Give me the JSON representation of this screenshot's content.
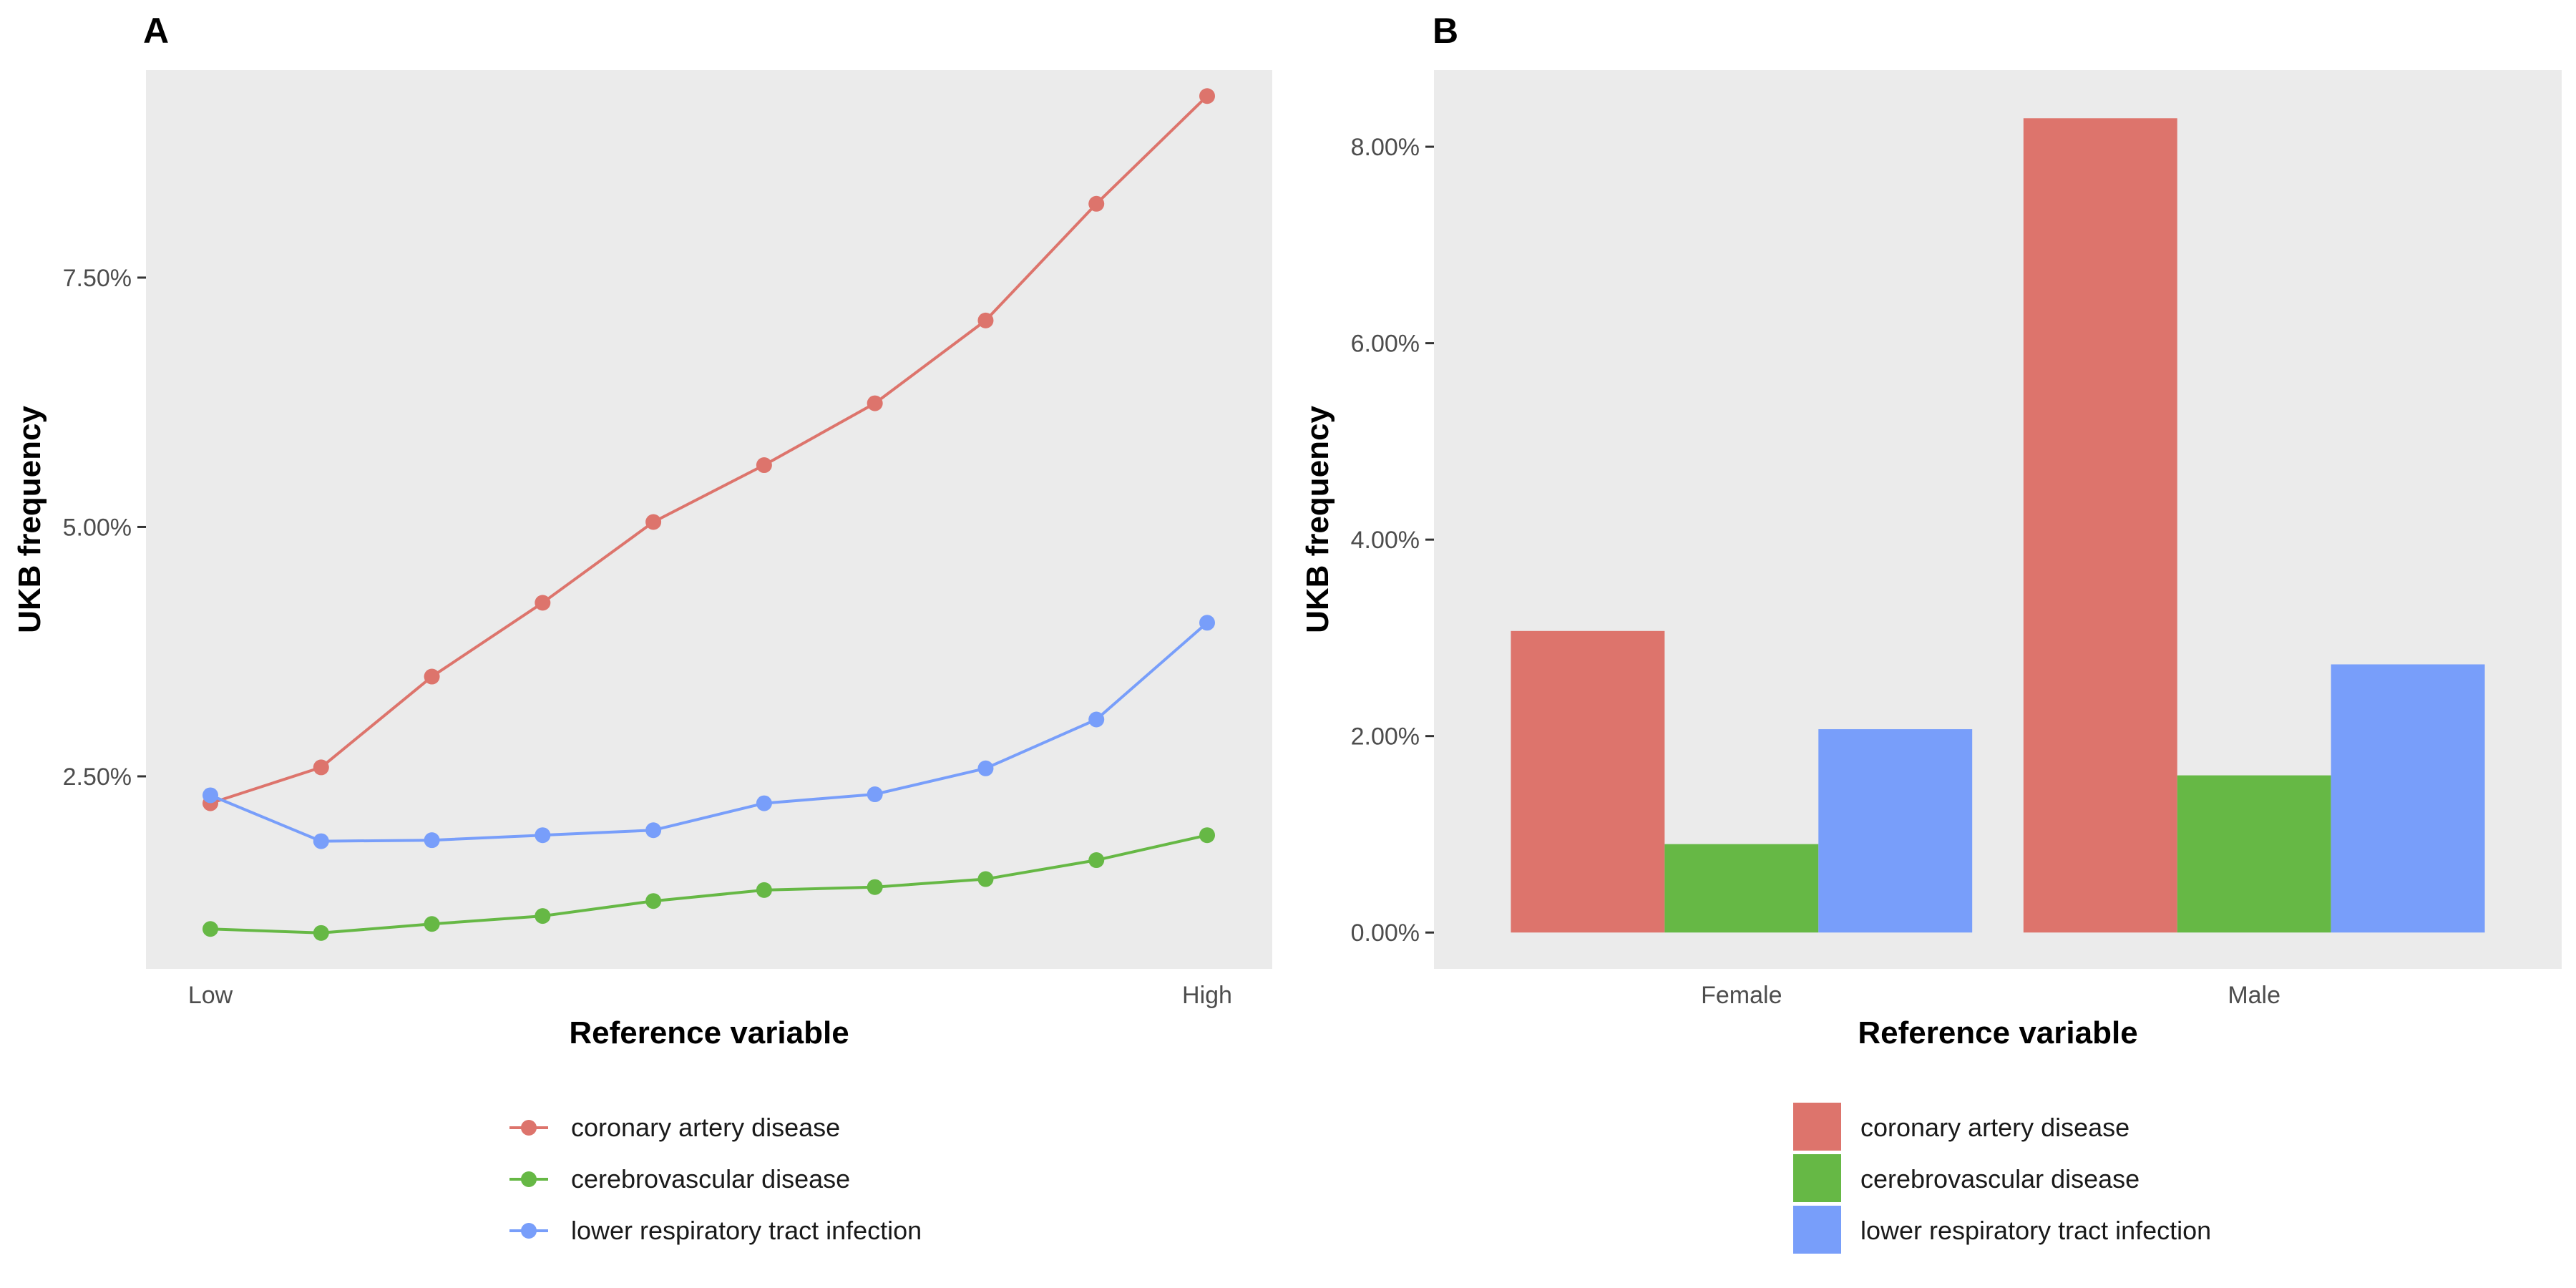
{
  "colors": {
    "coronary": "#DD746C",
    "cerebro": "#66B845",
    "lrti": "#789EFA",
    "panel_bg": "#EBEBEB",
    "tick": "#333333"
  },
  "legend": [
    "coronary artery disease",
    "cerebrovascular disease",
    "lower respiratory tract infection"
  ],
  "chart_data": [
    {
      "panel": "A",
      "type": "line",
      "xlabel": "Reference variable",
      "ylabel": "UKB frequency",
      "x_tick_labels": [
        "Low",
        "High"
      ],
      "x": [
        1,
        2,
        3,
        4,
        5,
        6,
        7,
        8,
        9,
        10
      ],
      "ylim": [
        0.0057,
        0.0958
      ],
      "y_ticks": [
        0.025,
        0.05,
        0.075
      ],
      "y_tick_labels": [
        "2.50%",
        "5.00%",
        "7.50%"
      ],
      "legend_position": "bottom",
      "grid": false,
      "series": [
        {
          "name": "coronary artery disease",
          "color": "#DD746C",
          "values": [
            0.0223,
            0.0259,
            0.035,
            0.0424,
            0.0505,
            0.0562,
            0.0624,
            0.0707,
            0.0824,
            0.0932
          ]
        },
        {
          "name": "cerebrovascular disease",
          "color": "#66B845",
          "values": [
            0.0097,
            0.0093,
            0.0102,
            0.011,
            0.0125,
            0.0136,
            0.0139,
            0.0147,
            0.0166,
            0.0191
          ]
        },
        {
          "name": "lower respiratory tract infection",
          "color": "#789EFA",
          "values": [
            0.0231,
            0.0185,
            0.0186,
            0.0191,
            0.0196,
            0.0223,
            0.0232,
            0.0258,
            0.0307,
            0.0404
          ]
        }
      ]
    },
    {
      "panel": "B",
      "type": "bar",
      "xlabel": "Reference variable",
      "ylabel": "UKB frequency",
      "categories": [
        "Female",
        "Male"
      ],
      "ylim": [
        -0.0037,
        0.0878
      ],
      "y_ticks": [
        0,
        0.02,
        0.04,
        0.06,
        0.08
      ],
      "y_tick_labels": [
        "0.00%",
        "2.00%",
        "4.00%",
        "6.00%",
        "8.00%"
      ],
      "legend_position": "bottom",
      "grid": false,
      "series": [
        {
          "name": "coronary artery disease",
          "color": "#DD746C",
          "values": [
            0.0307,
            0.0829
          ]
        },
        {
          "name": "cerebrovascular disease",
          "color": "#66B845",
          "values": [
            0.009,
            0.016
          ]
        },
        {
          "name": "lower respiratory tract infection",
          "color": "#789EFA",
          "values": [
            0.0207,
            0.0273
          ]
        }
      ]
    }
  ]
}
